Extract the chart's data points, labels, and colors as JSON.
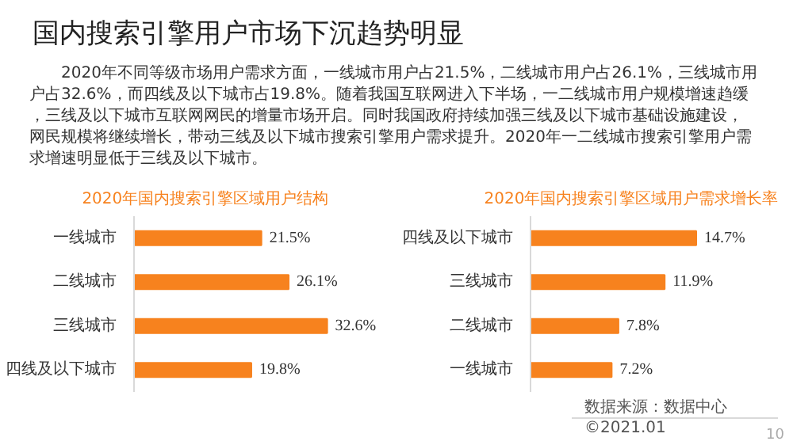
{
  "chart_data": [
    {
      "type": "other",
      "title": "国内搜索引擎用户市场下沉趋势明显",
      "annotations": [
        "2020年不同等级市场用户需求方面，一线城市用户占21.5%，二线城市用户占26.1%，三线城市用户占32.6%，而四线及以下城市占19.8%。随着我国互联网进入下半场，一二线城市用户规模增速趋缓，三线及以下城市互联网网民的增量市场开启。同时我国政府持续加强三线及以下城市基础设施建设，网民规模将继续增长，带动三线及以下城市搜索引擎用户需求提升。2020年一二线城市搜索引擎用户需求增速明显低于三线及以下城市。"
      ]
    },
    {
      "type": "bar",
      "orientation": "horizontal",
      "title": "2020年国内搜索引擎区域用户结构",
      "categories": [
        "一线城市",
        "二线城市",
        "三线城市",
        "四线及以下城市"
      ],
      "values": [
        21.5,
        26.1,
        32.6,
        19.8
      ],
      "value_labels": [
        "21.5%",
        "26.1%",
        "32.6%",
        "19.8%"
      ],
      "color": "#f7821e"
    },
    {
      "type": "bar",
      "orientation": "horizontal",
      "title": "2020年国内搜索引擎区域用户需求增长率",
      "categories": [
        "四线及以下城市",
        "三线城市",
        "二线城市",
        "一线城市"
      ],
      "values": [
        14.7,
        11.9,
        7.8,
        7.2
      ],
      "value_labels": [
        "14.7%",
        "11.9%",
        "7.8%",
        "7.2%"
      ],
      "color": "#f7821e",
      "annotations": [
        "数据来源：数据中心",
        "©2021.01",
        "10"
      ]
    }
  ]
}
